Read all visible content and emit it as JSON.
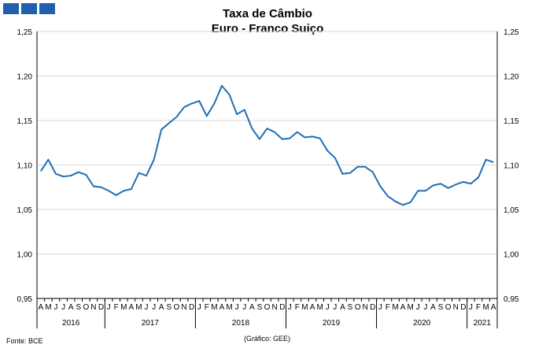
{
  "chart_data": {
    "type": "line",
    "title": "Taxa de Câmbio",
    "subtitle": "Euro - Franco Suiço",
    "ylim": [
      0.95,
      1.25
    ],
    "yticks": [
      "0,95",
      "1,00",
      "1,05",
      "1,10",
      "1,15",
      "1,20",
      "1,25"
    ],
    "ytick_values": [
      0.95,
      1.0,
      1.05,
      1.1,
      1.15,
      1.2,
      1.25
    ],
    "months": [
      "A",
      "M",
      "J",
      "J",
      "A",
      "S",
      "O",
      "N",
      "D",
      "J",
      "F",
      "M",
      "A",
      "M",
      "J",
      "J",
      "A",
      "S",
      "O",
      "N",
      "D",
      "J",
      "F",
      "M",
      "A",
      "M",
      "J",
      "J",
      "A",
      "S",
      "O",
      "N",
      "D",
      "J",
      "F",
      "M",
      "A",
      "M",
      "J",
      "J",
      "A",
      "S",
      "O",
      "N",
      "D",
      "J",
      "F",
      "M",
      "A",
      "M",
      "J",
      "J",
      "A",
      "S",
      "O",
      "N",
      "D",
      "J",
      "F",
      "M",
      "A"
    ],
    "years": [
      {
        "label": "2016",
        "start": 0,
        "count": 9
      },
      {
        "label": "2017",
        "start": 9,
        "count": 12
      },
      {
        "label": "2018",
        "start": 21,
        "count": 12
      },
      {
        "label": "2019",
        "start": 33,
        "count": 12
      },
      {
        "label": "2020",
        "start": 45,
        "count": 12
      },
      {
        "label": "2021",
        "start": 57,
        "count": 4
      }
    ],
    "series": [
      {
        "color": "#1f6fb5",
        "values": [
          1.093,
          1.106,
          1.09,
          1.087,
          1.088,
          1.092,
          1.089,
          1.076,
          1.075,
          1.071,
          1.066,
          1.071,
          1.073,
          1.091,
          1.088,
          1.106,
          1.14,
          1.147,
          1.154,
          1.165,
          1.169,
          1.172,
          1.155,
          1.169,
          1.189,
          1.179,
          1.157,
          1.162,
          1.141,
          1.129,
          1.141,
          1.137,
          1.129,
          1.13,
          1.137,
          1.131,
          1.132,
          1.13,
          1.116,
          1.108,
          1.09,
          1.091,
          1.098,
          1.098,
          1.092,
          1.076,
          1.065,
          1.059,
          1.055,
          1.058,
          1.071,
          1.071,
          1.077,
          1.079,
          1.074,
          1.078,
          1.081,
          1.079,
          1.086,
          1.106,
          1.103
        ]
      }
    ],
    "grid": true,
    "legend": "none"
  },
  "source_label": "Fonte: BCE",
  "credit_label": "(Gráfico: GEE)",
  "logo_color": "#1f5fae"
}
